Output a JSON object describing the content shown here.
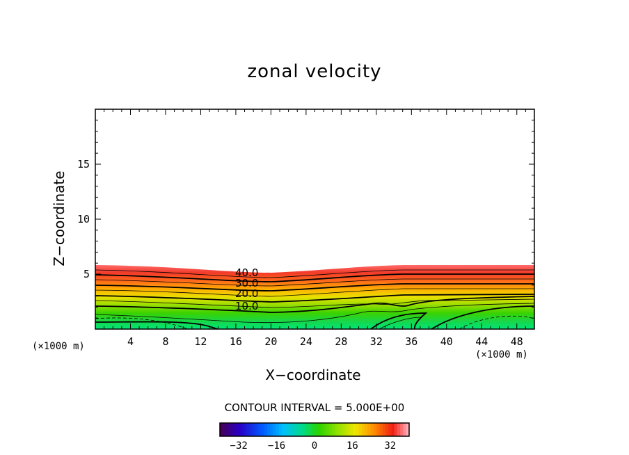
{
  "chart_data": {
    "type": "contour",
    "title": "zonal velocity",
    "xlabel": "X−coordinate",
    "ylabel": "Z−coordinate",
    "x_unit_left": "(×1000 m)",
    "x_unit_right": "(×1000 m)",
    "xlim": [
      0,
      50
    ],
    "ylim": [
      0,
      20
    ],
    "x_ticks": [
      "4",
      "8",
      "12",
      "16",
      "20",
      "24",
      "28",
      "32",
      "36",
      "40",
      "44",
      "48"
    ],
    "y_ticks": [
      "5",
      "10",
      "15"
    ],
    "contour_labels": [
      "40.0",
      "30.0",
      "20.0",
      "10.0"
    ],
    "contour_interval_text": "CONTOUR INTERVAL = 5.000E+00",
    "colorbar_ticks": [
      "−32",
      "−16",
      "0",
      "16",
      "32"
    ],
    "colorbar_range": [
      -40,
      40
    ]
  }
}
